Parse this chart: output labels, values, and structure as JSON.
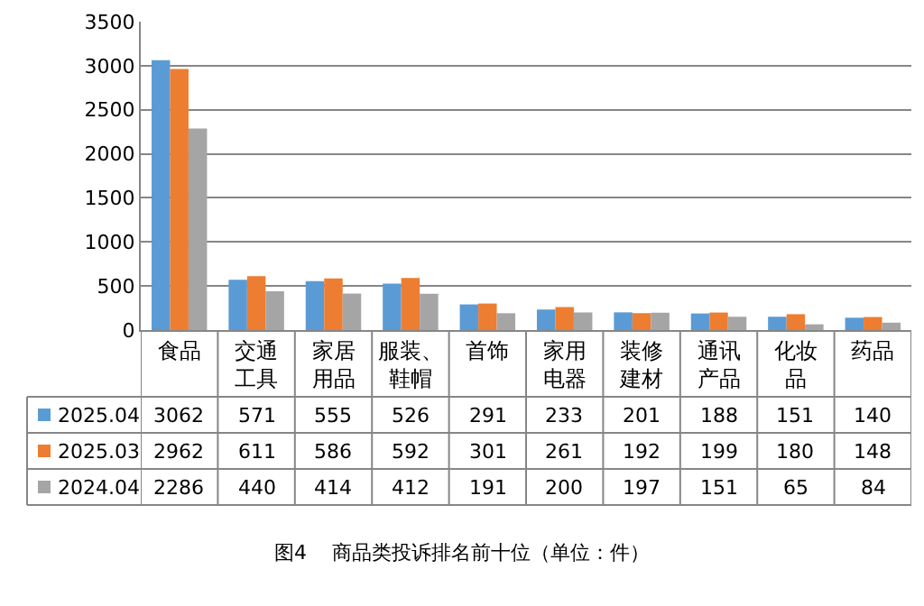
{
  "chart_data": {
    "type": "bar",
    "categories": [
      "食品",
      "交通工具",
      "家居用品",
      "服装、鞋帽",
      "首饰",
      "家用电器",
      "装修建材",
      "通讯产品",
      "化妆品",
      "药品"
    ],
    "series": [
      {
        "name": "2025.04",
        "color": "#5b9bd5",
        "values": [
          3062,
          571,
          555,
          526,
          291,
          233,
          201,
          188,
          151,
          140
        ]
      },
      {
        "name": "2025.03",
        "color": "#ed7d31",
        "values": [
          2962,
          611,
          586,
          592,
          301,
          261,
          192,
          199,
          180,
          148
        ]
      },
      {
        "name": "2024.04",
        "color": "#a5a5a5",
        "values": [
          2286,
          440,
          414,
          412,
          191,
          200,
          197,
          151,
          65,
          84
        ]
      }
    ],
    "ylim": [
      0,
      3500
    ],
    "yticks": [
      0,
      500,
      1000,
      1500,
      2000,
      2500,
      3000,
      3500
    ],
    "grid": "y",
    "legend": "bottom left",
    "data_labels": true,
    "annotations": [
      "图4    商品类投诉排名前十位（单位：件）"
    ]
  }
}
